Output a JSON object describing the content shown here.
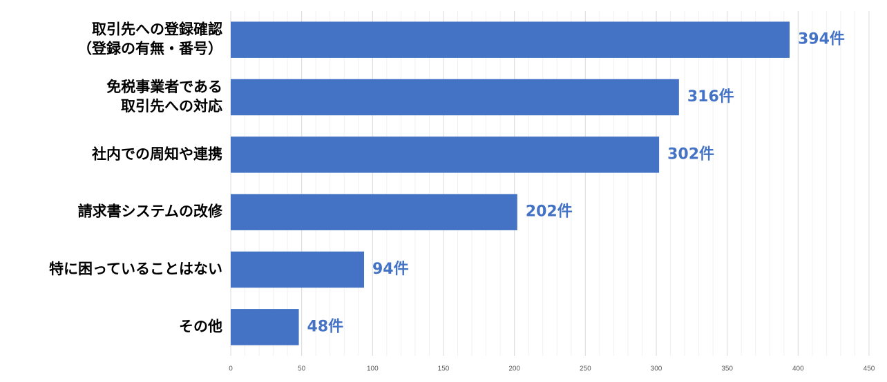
{
  "chart_data": {
    "type": "bar",
    "orientation": "horizontal",
    "categories": [
      [
        "取引先への登録確認",
        "（登録の有無・番号）"
      ],
      [
        "免税事業者である",
        "取引先への対応"
      ],
      [
        "社内での周知や連携"
      ],
      [
        "請求書システムの改修"
      ],
      [
        "特に困っていることはない"
      ],
      [
        "その他"
      ]
    ],
    "values": [
      394,
      316,
      302,
      202,
      94,
      48
    ],
    "value_labels": [
      "394件",
      "316件",
      "302件",
      "202件",
      "94件",
      "48件"
    ],
    "x_ticks": [
      "0",
      "50",
      "100",
      "150",
      "200",
      "250",
      "300",
      "350",
      "400",
      "450"
    ],
    "xlim": [
      0,
      450
    ],
    "grid": true,
    "bar_color": "#4472C4",
    "label_color": "#4472C4"
  }
}
